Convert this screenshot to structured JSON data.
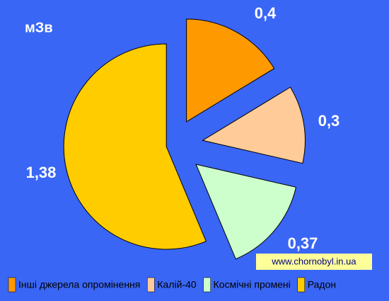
{
  "chart_data": {
    "type": "pie",
    "unit_label": "мЗв",
    "categories": [
      "Інші джерела опромінення",
      "Калій-40",
      "Космічні промені",
      "Радон"
    ],
    "values": [
      0.4,
      0.3,
      0.37,
      1.38
    ],
    "value_labels": [
      "0,4",
      "0,3",
      "0,37",
      "1,38"
    ],
    "colors": [
      "#ff9900",
      "#ffcc99",
      "#ccffcc",
      "#ffcc00"
    ],
    "source": "www.chornobyl.in.ua"
  }
}
